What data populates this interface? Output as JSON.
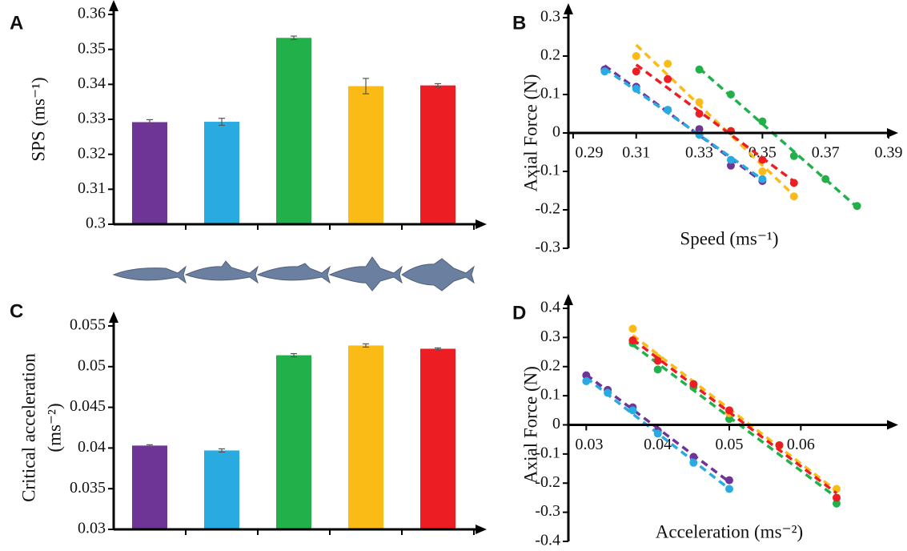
{
  "chart_data": [
    {
      "panel": "A",
      "type": "bar",
      "ylabel": "SPS (ms⁻¹)",
      "categories": [
        null,
        null,
        null,
        null,
        null
      ],
      "values": [
        0.3292,
        0.3293,
        0.3533,
        0.3395,
        0.3397
      ],
      "errors": [
        0.0007,
        0.001,
        0.0005,
        0.0022,
        0.0005
      ],
      "colors": [
        "#6e3496",
        "#29aae1",
        "#22b04b",
        "#fbbb16",
        "#ec1e24"
      ],
      "ylim": [
        0.3,
        0.36
      ],
      "yticks": [
        0.3,
        0.31,
        0.32,
        0.33,
        0.34,
        0.35,
        0.36
      ]
    },
    {
      "panel": "B",
      "type": "scatter",
      "xlabel": "Speed (ms⁻¹)",
      "ylabel": "Axial Force (N)",
      "xlim": [
        0.2885,
        0.3905
      ],
      "xticks": [
        0.29,
        0.31,
        0.33,
        0.35,
        0.37,
        0.39
      ],
      "ylim": [
        -0.3,
        0.3
      ],
      "yticks": [
        -0.3,
        -0.2,
        -0.1,
        0,
        0.1,
        0.2,
        0.3
      ],
      "series": [
        {
          "color": "#6e3496",
          "x": [
            0.3,
            0.31,
            0.32,
            0.33,
            0.34,
            0.35
          ],
          "values": [
            0.165,
            0.12,
            0.06,
            0.01,
            -0.085,
            -0.125
          ]
        },
        {
          "color": "#29aae1",
          "x": [
            0.3,
            0.31,
            0.32,
            0.33,
            0.34,
            0.35
          ],
          "values": [
            0.16,
            0.115,
            0.06,
            -0.005,
            -0.07,
            -0.12
          ]
        },
        {
          "color": "#22b04b",
          "x": [
            0.33,
            0.34,
            0.35,
            0.36,
            0.37,
            0.38
          ],
          "values": [
            0.165,
            0.1,
            0.03,
            -0.06,
            -0.12,
            -0.19
          ]
        },
        {
          "color": "#fbbb16",
          "x": [
            0.31,
            0.32,
            0.33,
            0.34,
            0.35,
            0.36
          ],
          "values": [
            0.2,
            0.18,
            0.08,
            0.005,
            -0.1,
            -0.165
          ]
        },
        {
          "color": "#ec1e24",
          "x": [
            0.31,
            0.32,
            0.33,
            0.34,
            0.35,
            0.36
          ],
          "values": [
            0.16,
            0.14,
            0.05,
            0.005,
            -0.07,
            -0.13
          ]
        }
      ]
    },
    {
      "panel": "C",
      "type": "bar",
      "ylabel": [
        "Critical acceleration",
        "(ms⁻²)"
      ],
      "categories": [
        null,
        null,
        null,
        null,
        null
      ],
      "values": [
        0.0403,
        0.0397,
        0.0514,
        0.0526,
        0.0522
      ],
      "errors": [
        0.0001,
        0.0002,
        0.0002,
        0.0002,
        0.0001
      ],
      "colors": [
        "#6e3496",
        "#29aae1",
        "#22b04b",
        "#fbbb16",
        "#ec1e24"
      ],
      "ylim": [
        0.03,
        0.055
      ],
      "yticks": [
        0.03,
        0.035,
        0.04,
        0.045,
        0.05,
        0.055
      ]
    },
    {
      "panel": "D",
      "type": "scatter",
      "xlabel": "Acceleration (ms⁻²)",
      "ylabel": "Axial Force (N)",
      "xlim": [
        0.0275,
        0.0725
      ],
      "xticks": [
        0.03,
        0.04,
        0.05,
        0.06
      ],
      "ylim": [
        -0.4,
        0.4
      ],
      "yticks": [
        -0.4,
        -0.3,
        -0.2,
        -0.1,
        0,
        0.1,
        0.2,
        0.3,
        0.4
      ],
      "series": [
        {
          "color": "#6e3496",
          "x": [
            0.03,
            0.033,
            0.0365,
            0.04,
            0.045,
            0.05
          ],
          "values": [
            0.17,
            0.12,
            0.06,
            -0.02,
            -0.11,
            -0.19
          ]
        },
        {
          "color": "#29aae1",
          "x": [
            0.03,
            0.033,
            0.0365,
            0.04,
            0.045,
            0.05
          ],
          "values": [
            0.15,
            0.11,
            0.05,
            -0.03,
            -0.13,
            -0.22
          ]
        },
        {
          "color": "#22b04b",
          "x": [
            0.0365,
            0.04,
            0.045,
            0.05,
            0.057,
            0.065
          ],
          "values": [
            0.28,
            0.19,
            0.13,
            0.02,
            -0.07,
            -0.27
          ]
        },
        {
          "color": "#fbbb16",
          "x": [
            0.0365,
            0.04,
            0.045,
            0.05,
            0.057,
            0.065
          ],
          "values": [
            0.33,
            0.23,
            0.14,
            0.04,
            -0.07,
            -0.22
          ]
        },
        {
          "color": "#ec1e24",
          "x": [
            0.0365,
            0.04,
            0.045,
            0.05,
            0.057,
            0.065
          ],
          "values": [
            0.29,
            0.22,
            0.14,
            0.05,
            -0.07,
            -0.25
          ]
        }
      ]
    }
  ]
}
